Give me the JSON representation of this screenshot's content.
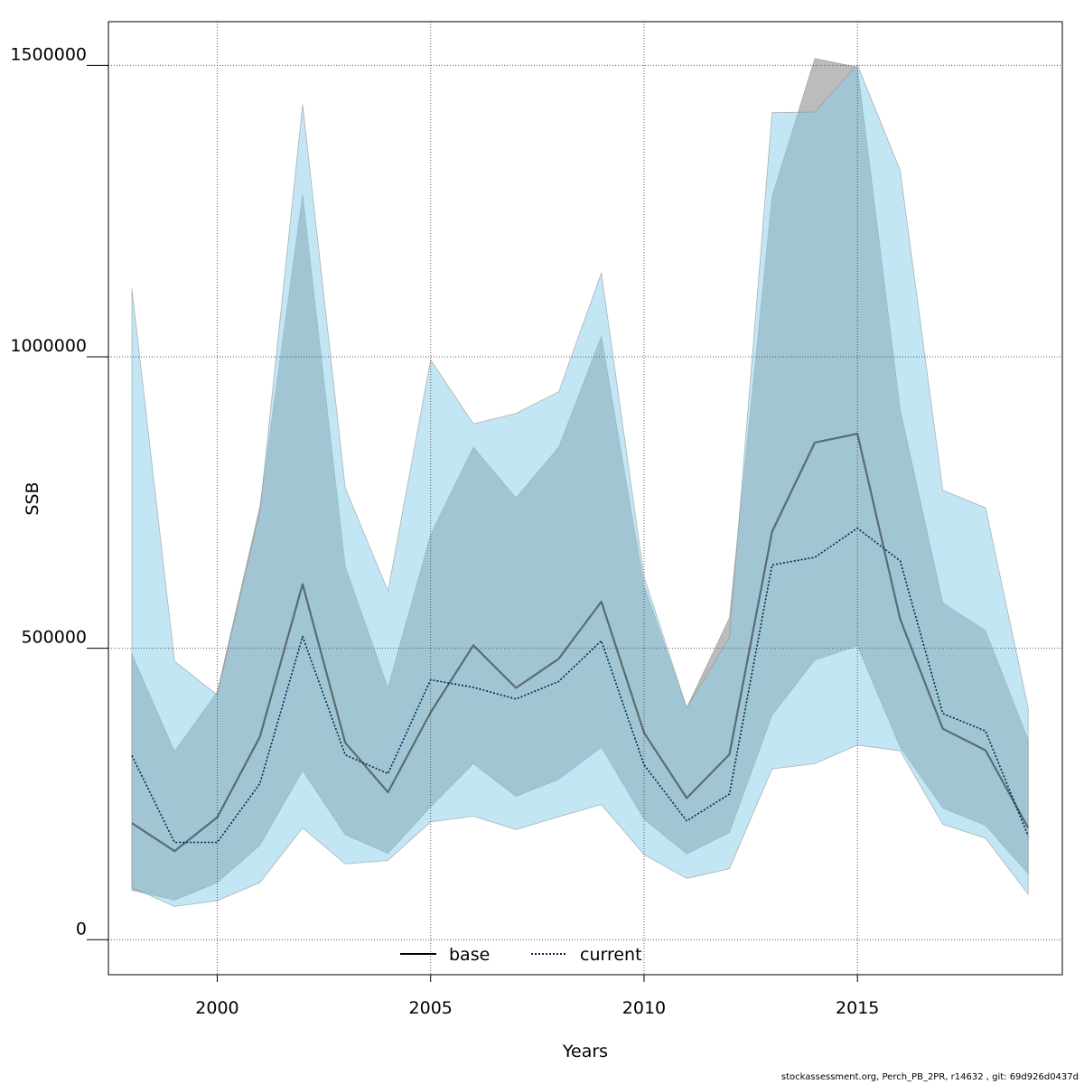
{
  "chart_data": {
    "type": "line",
    "xlabel": "Years",
    "ylabel": "SSB",
    "xlim": [
      1997.45,
      2019.8
    ],
    "ylim": [
      -60000,
      1575000
    ],
    "x_ticks": [
      "2000",
      "2005",
      "2010",
      "2015"
    ],
    "y_ticks": [
      "0",
      "500000",
      "1000000",
      "1500000"
    ],
    "grid": true,
    "legend_position": "bottom-center",
    "x": [
      1998,
      1999,
      2000,
      2001,
      2002,
      2003,
      2004,
      2005,
      2006,
      2007,
      2008,
      2009,
      2010,
      2011,
      2012,
      2013,
      2014,
      2015,
      2016,
      2017,
      2018,
      2019
    ],
    "series": [
      {
        "name": "base",
        "color": "#000000",
        "style": "solid",
        "values": [
          200000,
          152000,
          210000,
          348000,
          610000,
          338000,
          253000,
          390000,
          505000,
          432000,
          482000,
          580000,
          355000,
          243000,
          318000,
          700000,
          853000,
          868000,
          550000,
          362000,
          325000,
          192000
        ],
        "lower": [
          85000,
          68000,
          98000,
          162000,
          290000,
          180000,
          148000,
          228000,
          302000,
          246000,
          275000,
          330000,
          207000,
          147000,
          184000,
          385000,
          480000,
          504000,
          330000,
          226000,
          196000,
          113000
        ],
        "upper": [
          490000,
          323000,
          425000,
          743000,
          1278000,
          640000,
          432000,
          695000,
          845000,
          758000,
          845000,
          1035000,
          607000,
          398000,
          552000,
          1275000,
          1512000,
          1497000,
          910000,
          578000,
          530000,
          343000
        ],
        "band_color": "#a0a0a0"
      },
      {
        "name": "current",
        "color": "#00264d",
        "style": "dotted",
        "values": [
          316000,
          167000,
          167000,
          268000,
          520000,
          317000,
          285000,
          446000,
          433000,
          413000,
          443000,
          513000,
          300000,
          204000,
          250000,
          643000,
          656000,
          706000,
          650000,
          388000,
          358000,
          178000
        ],
        "lower": [
          90000,
          57000,
          67000,
          98000,
          192000,
          130000,
          136000,
          202000,
          212000,
          189000,
          211000,
          232000,
          146000,
          105000,
          122000,
          293000,
          302000,
          334000,
          324000,
          198000,
          174000,
          78000
        ],
        "upper": [
          1117000,
          478000,
          420000,
          735000,
          1433000,
          775000,
          598000,
          995000,
          885000,
          903000,
          940000,
          1144000,
          622000,
          398000,
          518000,
          1419000,
          1420000,
          1501000,
          1320000,
          771000,
          741000,
          398000
        ],
        "band_color": "#87ceeb"
      }
    ]
  },
  "footer": "stockassessment.org, Perch_PB_2PR, r14632 , git: 69d926d0437d"
}
